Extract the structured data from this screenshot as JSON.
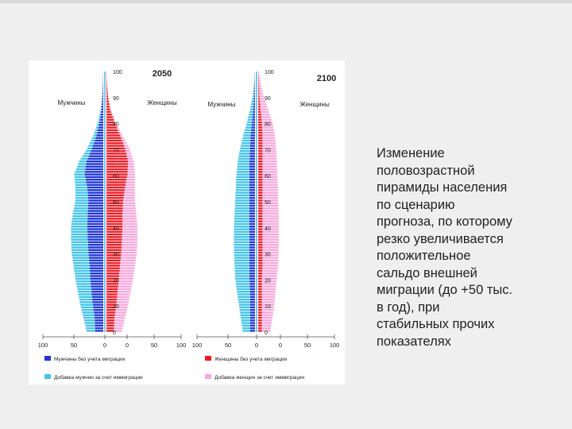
{
  "caption": "Изменение\nполовозрастной\nпирамиды населения\nпо сценарию\nпрогноза, по которому\nрезко увеличивается\nположительное\nсальдо внешней\nмиграции (до +50 тыс.\nв год), при\nстабильных прочих\nпоказателях",
  "colors": {
    "male_base": "#1f35d6",
    "male_migration": "#44c4e8",
    "female_base": "#ee1c25",
    "female_migration": "#f7a8dc"
  },
  "legend": [
    {
      "label": "Мужчины  без учета миграции",
      "color": "#1f35d6"
    },
    {
      "label": "Женщины без учета миграции",
      "color": "#ee1c25"
    },
    {
      "label": "Добавка мужчин за счет иммиграции",
      "color": "#44c4e8"
    },
    {
      "label": "Добавка женщин за счет иммиграции",
      "color": "#f7a8dc"
    }
  ],
  "chart_data": [
    {
      "type": "bar",
      "title": "2050",
      "male_label": "Мужчины",
      "female_label": "Женщины",
      "age_ticks": [
        "0",
        "10",
        "20",
        "30",
        "40",
        "50",
        "60",
        "70",
        "80",
        "90",
        "100"
      ],
      "x_ticks": [
        "100",
        "50",
        "0",
        "0",
        "50",
        "100"
      ],
      "xlim": [
        0,
        100
      ],
      "ages": [
        0,
        5,
        10,
        15,
        20,
        25,
        30,
        35,
        40,
        45,
        50,
        55,
        60,
        65,
        70,
        75,
        80,
        85,
        90,
        95,
        100
      ],
      "series": [
        {
          "name": "Мужчины  без учета миграции",
          "side": "left",
          "values": [
            13,
            14,
            17,
            19,
            21,
            22,
            24,
            25,
            26,
            25,
            24,
            26,
            30,
            27,
            18,
            11,
            6,
            3,
            1.5,
            0.5,
            0.1
          ]
        },
        {
          "name": "Добавка мужчин за счет иммиграции",
          "side": "left",
          "values": [
            14,
            18,
            20,
            22,
            24,
            26,
            27,
            27,
            26,
            24,
            21,
            19,
            17,
            12,
            8,
            5,
            3,
            1.2,
            0.5,
            0.2,
            0
          ]
        },
        {
          "name": "Женщины без учета миграции",
          "side": "right",
          "values": [
            12,
            13,
            16,
            18,
            20,
            22,
            24,
            25,
            26,
            26,
            27,
            30,
            34,
            35,
            30,
            22,
            13,
            6,
            2.5,
            0.8,
            0.1
          ]
        },
        {
          "name": "Добавка женщин за счет иммиграции",
          "side": "right",
          "values": [
            13,
            17,
            19,
            21,
            23,
            24,
            25,
            25,
            24,
            22,
            19,
            16,
            12,
            9,
            7,
            4,
            2,
            1,
            0.4,
            0.1,
            0
          ]
        }
      ]
    },
    {
      "type": "bar",
      "title": "2100",
      "male_label": "Мужчины",
      "female_label": "Женщины",
      "age_ticks": [
        "0",
        "10",
        "20",
        "30",
        "40",
        "50",
        "60",
        "70",
        "80",
        "90",
        "100"
      ],
      "x_ticks": [
        "100",
        "50",
        "0",
        "0",
        "50",
        "100"
      ],
      "xlim": [
        0,
        100
      ],
      "ages": [
        0,
        5,
        10,
        15,
        20,
        25,
        30,
        35,
        40,
        45,
        50,
        55,
        60,
        65,
        70,
        75,
        80,
        85,
        90,
        95,
        100
      ],
      "series": [
        {
          "name": "Мужчины  без учета миграции",
          "side": "left",
          "values": [
            8,
            8,
            8,
            8,
            9,
            9,
            9,
            9,
            9,
            9,
            9,
            9,
            9,
            9,
            8,
            7,
            5,
            3,
            1.5,
            0.5,
            0.1
          ]
        },
        {
          "name": "Добавка мужчин за счет иммиграции",
          "side": "left",
          "values": [
            12,
            15,
            18,
            21,
            23,
            24,
            25,
            25,
            25,
            24,
            23,
            22,
            21,
            19,
            16,
            12,
            8,
            5,
            2.5,
            1,
            0.2
          ]
        },
        {
          "name": "Женщины без учета миграции",
          "side": "right",
          "values": [
            6,
            6,
            6,
            6,
            6,
            7,
            7,
            7,
            7,
            7,
            7,
            7,
            7,
            7,
            7,
            7,
            6,
            4,
            2,
            1,
            0.1
          ]
        },
        {
          "name": "Добавка женщин за счет иммиграции",
          "side": "right",
          "values": [
            14,
            17,
            20,
            22,
            24,
            25,
            26,
            26,
            26,
            26,
            25,
            25,
            24,
            23,
            22,
            20,
            17,
            12,
            7,
            3,
            0.5
          ]
        }
      ]
    }
  ]
}
